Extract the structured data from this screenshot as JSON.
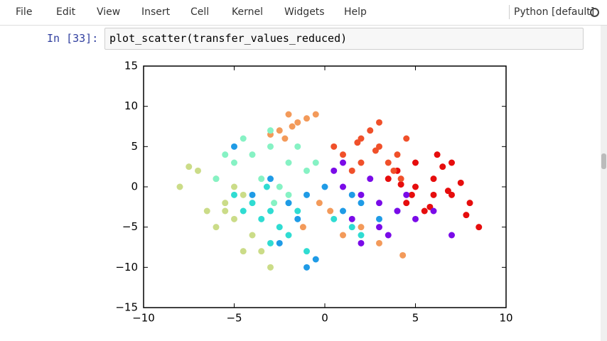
{
  "menu": {
    "items": [
      "File",
      "Edit",
      "View",
      "Insert",
      "Cell",
      "Kernel",
      "Widgets",
      "Help"
    ],
    "kernel": "Python [default]"
  },
  "cell": {
    "prompt": "In [33]:",
    "code": "plot_scatter(transfer_values_reduced)"
  },
  "chart_data": {
    "type": "scatter",
    "xlim": [
      -10,
      10
    ],
    "xticks": [
      {
        "value": -10,
        "label": "−10"
      },
      {
        "value": -5,
        "label": "−5"
      },
      0,
      5,
      10
    ],
    "ylim": [
      -15,
      15
    ],
    "yticks": [
      {
        "value": -15,
        "label": "−15"
      },
      {
        "value": -10,
        "label": "−10"
      },
      {
        "value": -5,
        "label": "−5"
      },
      0,
      5,
      10,
      15
    ],
    "series": [
      {
        "color": "#e60d0d",
        "x": [
          5,
          6,
          7,
          8,
          8.5,
          4,
          5.5,
          6.5,
          7.5,
          4.5,
          6,
          7,
          5,
          6.8,
          3.5,
          4.8,
          7.8,
          5.8,
          6.2,
          4.2
        ],
        "values": [
          0,
          1,
          -1,
          -2,
          -5,
          2,
          -3,
          2.5,
          0.5,
          -2,
          -1,
          3,
          3,
          -0.5,
          1,
          -1,
          -3.5,
          -2.5,
          4,
          0.3
        ]
      },
      {
        "color": "#f0502a",
        "x": [
          1,
          2,
          3,
          4,
          2.5,
          3.5,
          1.5,
          4.5,
          2,
          3,
          0.5,
          3.8,
          2.8,
          1.8,
          4.2
        ],
        "values": [
          4,
          6,
          5,
          4,
          7,
          3,
          2,
          6,
          3,
          8,
          5,
          2,
          4.5,
          5.5,
          1
        ]
      },
      {
        "color": "#f39a5a",
        "x": [
          -2,
          -1.5,
          -2.5,
          -1,
          -2.2,
          -1.8,
          -3,
          -0.5,
          1,
          2,
          0.3,
          -0.3,
          3,
          4.3,
          -1.2
        ],
        "values": [
          9,
          8,
          7,
          8.5,
          6,
          7.5,
          6.5,
          9,
          -6,
          -5,
          -3,
          -2,
          -7,
          -8.5,
          -5
        ]
      },
      {
        "color": "#cbdc88",
        "x": [
          -8,
          -7,
          -6,
          -5.5,
          -6.5,
          -5,
          -4.5,
          -7.5,
          -6,
          -5,
          -4,
          -3.5,
          -3,
          -4.5,
          -5.5
        ],
        "values": [
          0,
          2,
          1,
          -2,
          -3,
          -4,
          -1,
          2.5,
          -5,
          0,
          -6,
          -8,
          -10,
          -8,
          -3
        ]
      },
      {
        "color": "#86f2c4",
        "x": [
          -4,
          -3,
          -2,
          -1,
          -5,
          -3.5,
          -2.5,
          -1.5,
          -4.5,
          -0.5,
          -3,
          -2,
          -6,
          -5.5,
          -2.8
        ],
        "values": [
          4,
          5,
          3,
          2,
          3,
          1,
          0,
          5,
          6,
          3,
          7,
          -1,
          1,
          4,
          -2
        ]
      },
      {
        "color": "#2fdcd2",
        "x": [
          -4,
          -3,
          -2.5,
          -3.5,
          -5,
          -2,
          -1.5,
          -4.5,
          -3,
          -2,
          0.5,
          1.5,
          2,
          -1,
          -3.2
        ],
        "values": [
          -2,
          -3,
          -5,
          -4,
          -1,
          -6,
          -3,
          -3,
          -7,
          -2,
          -4,
          -5,
          -6,
          -8,
          0
        ]
      },
      {
        "color": "#1f9be6",
        "x": [
          -1,
          0,
          -2,
          -3,
          1,
          2,
          -1.5,
          -0.5,
          3,
          4,
          -2.5,
          -4,
          -5,
          1.5,
          -1
        ],
        "values": [
          -1,
          0,
          -2,
          1,
          -3,
          -2,
          -4,
          -9,
          -4,
          -3,
          -7,
          -1,
          5,
          -1,
          -10
        ]
      },
      {
        "color": "#7a0be8",
        "x": [
          1,
          2,
          3,
          4,
          2.5,
          1.5,
          0.5,
          3.5,
          4.5,
          5,
          2,
          3,
          1,
          6,
          7
        ],
        "values": [
          0,
          -1,
          -2,
          -3,
          1,
          -4,
          2,
          -6,
          -1,
          -4,
          -7,
          -5,
          3,
          -3,
          -6
        ]
      }
    ]
  }
}
